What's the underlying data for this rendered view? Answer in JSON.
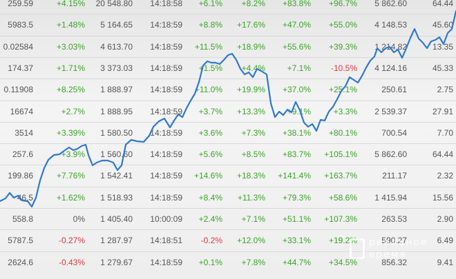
{
  "table": {
    "rows": [
      {
        "price": "259.59",
        "change": "+4.15%",
        "volume": "20 548.80",
        "time": "14:18:58",
        "w": "+6.1%",
        "m": "+8.2%",
        "q": "+83.8%",
        "y": "+96.7%",
        "cap": "5 862.60",
        "last": "64.44"
      },
      {
        "price": "5983.5",
        "change": "+1.48%",
        "volume": "5 164.65",
        "time": "14:18:59",
        "w": "+8.8%",
        "m": "+17.6%",
        "q": "+47.0%",
        "y": "+55.0%",
        "cap": "4 148.53",
        "last": "45.60"
      },
      {
        "price": "0.02584",
        "change": "+3.03%",
        "volume": "4 613.70",
        "time": "14:18:59",
        "w": "+11.5%",
        "m": "+18.9%",
        "q": "+55.6%",
        "y": "+39.3%",
        "cap": "1 214.82",
        "last": "13.35"
      },
      {
        "price": "174.37",
        "change": "+1.71%",
        "volume": "3 373.03",
        "time": "14:18:59",
        "w": "+1.5%",
        "m": "+4.4%",
        "q": "+7.1%",
        "y": "-10.5%",
        "cap": "4 124.16",
        "last": "45.33"
      },
      {
        "price": "0.11908",
        "change": "+8.25%",
        "volume": "1 888.97",
        "time": "14:18:59",
        "w": "+11.0%",
        "m": "+19.9%",
        "q": "+37.0%",
        "y": "+25.1%",
        "cap": "250.61",
        "last": "2.75"
      },
      {
        "price": "16674",
        "change": "+2.7%",
        "volume": "1 888.95",
        "time": "14:18:59",
        "w": "+3.7%",
        "m": "+13.3%",
        "q": "+9.1%",
        "y": "+3.3%",
        "cap": "2 539.37",
        "last": "27.91"
      },
      {
        "price": "3514",
        "change": "+3.39%",
        "volume": "1 580.50",
        "time": "14:18:59",
        "w": "+3.6%",
        "m": "+7.3%",
        "q": "+38.1%",
        "y": "+80.1%",
        "cap": "700.54",
        "last": "7.70"
      },
      {
        "price": "257.6",
        "change": "+3.9%",
        "volume": "1 560.60",
        "time": "14:18:59",
        "w": "+5.6%",
        "m": "+8.5%",
        "q": "+83.7%",
        "y": "+105.1%",
        "cap": "5 862.60",
        "last": "64.44"
      },
      {
        "price": "199.86",
        "change": "+7.76%",
        "volume": "1 542.41",
        "time": "14:18:59",
        "w": "+14.6%",
        "m": "+18.3%",
        "q": "+141.4%",
        "y": "+163.7%",
        "cap": "211.17",
        "last": "2.32"
      },
      {
        "price": "46.5",
        "change": "+1.62%",
        "volume": "1 518.93",
        "time": "14:18:59",
        "w": "+8.4%",
        "m": "+11.3%",
        "q": "+79.3%",
        "y": "+58.6%",
        "cap": "1 415.94",
        "last": "15.56"
      },
      {
        "price": "558.8",
        "change": "0%",
        "volume": "1 405.40",
        "time": "10:00:09",
        "w": "+2.4%",
        "m": "+7.1%",
        "q": "+51.1%",
        "y": "+107.3%",
        "cap": "263.53",
        "last": "2.90"
      },
      {
        "price": "5787.5",
        "change": "-0.27%",
        "volume": "1 287.97",
        "time": "14:18:51",
        "w": "-0.2%",
        "m": "+12.0%",
        "q": "+33.1%",
        "y": "+19.2%",
        "cap": "590.27",
        "last": "6.49"
      },
      {
        "price": "2624.6",
        "change": "-0.43%",
        "volume": "1 279.67",
        "time": "14:18:59",
        "w": "+0.1%",
        "m": "+7.8%",
        "q": "+44.7%",
        "y": "+34.5%",
        "cap": "856.32",
        "last": "9.41"
      }
    ]
  },
  "overlay_line": {
    "color": "#2f78d0"
  },
  "watermark": {
    "line1": "реальное",
    "line2": "время"
  },
  "colors": {
    "positive": "#3aa428",
    "negative": "#e0383e",
    "neutral": "#555555",
    "line": "#2f78d0"
  }
}
